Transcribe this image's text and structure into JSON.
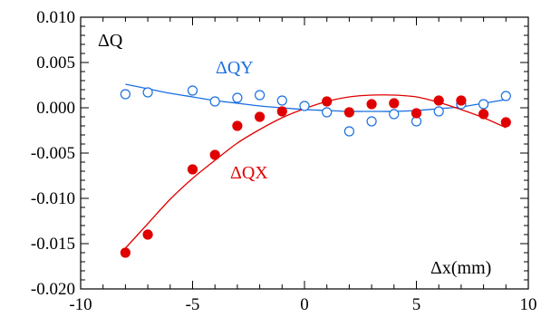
{
  "chart_data": {
    "type": "scatter",
    "xlabel": "Δx(mm)",
    "ylabel": "ΔQ",
    "xlim": [
      -10,
      10
    ],
    "ylim": [
      -0.02,
      0.01
    ],
    "x_ticks": [
      -10,
      -5,
      0,
      5,
      10
    ],
    "x_tick_labels": [
      "-10",
      "-5",
      "0",
      "5",
      "10"
    ],
    "y_ticks": [
      0.01,
      0.005,
      0.0,
      -0.005,
      -0.01,
      -0.015,
      -0.02
    ],
    "y_tick_labels": [
      "0.010",
      "0.005",
      "0.000",
      "-0.005",
      "-0.010",
      "-0.015",
      "-0.020"
    ],
    "grid": false,
    "series": [
      {
        "name": "ΔQY",
        "color": "#1a6fe0",
        "marker": "open-circle",
        "x": [
          -8,
          -7,
          -5,
          -4,
          -3,
          -2,
          -1,
          0,
          1,
          2,
          3,
          4,
          5,
          6,
          7,
          8,
          9
        ],
        "y": [
          0.0015,
          0.0017,
          0.0019,
          0.0007,
          0.0011,
          0.0014,
          0.0008,
          0.0002,
          -0.0005,
          -0.0026,
          -0.0015,
          -0.0007,
          -0.0015,
          -0.0004,
          0.0004,
          0.0004,
          0.0013
        ],
        "fit": {
          "x": [
            -8,
            -7,
            -6,
            -5,
            -4,
            -3,
            -2,
            -1,
            0,
            1,
            2,
            3,
            4,
            5,
            6,
            7,
            8,
            9
          ],
          "y": [
            0.0026,
            0.0021,
            0.0016,
            0.0012,
            0.0008,
            0.0005,
            0.0002,
            0.0,
            -0.0002,
            -0.0003,
            -0.0004,
            -0.0004,
            -0.0004,
            -0.0003,
            -0.0001,
            0.0001,
            0.0005,
            0.0009
          ]
        }
      },
      {
        "name": "ΔQX",
        "color": "#e00000",
        "marker": "filled-circle",
        "x": [
          -8,
          -7,
          -5,
          -4,
          -3,
          -2,
          -1,
          1,
          2,
          3,
          4,
          5,
          6,
          7,
          8,
          9
        ],
        "y": [
          -0.016,
          -0.014,
          -0.0068,
          -0.0052,
          -0.002,
          -0.001,
          -0.0004,
          0.0007,
          -0.0005,
          0.0004,
          0.0005,
          -0.0006,
          0.0008,
          0.0008,
          -0.0007,
          -0.0016
        ],
        "fit": {
          "x": [
            -8,
            -7,
            -6,
            -5,
            -4,
            -3,
            -2,
            -1,
            0,
            1,
            2,
            3,
            4,
            5,
            6,
            7,
            8,
            9
          ],
          "y": [
            -0.0155,
            -0.0128,
            -0.0101,
            -0.0078,
            -0.0058,
            -0.0039,
            -0.0024,
            -0.0011,
            -0.0001,
            0.0007,
            0.0012,
            0.0014,
            0.0014,
            0.0012,
            0.0006,
            -0.0002,
            -0.0011,
            -0.0022
          ]
        }
      }
    ]
  }
}
